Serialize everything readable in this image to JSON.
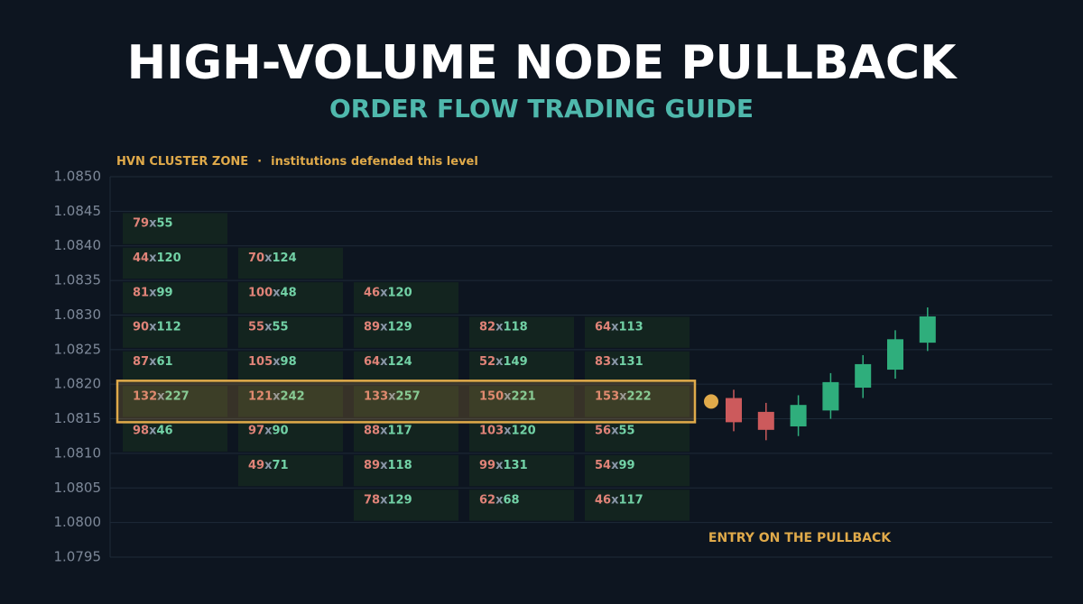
{
  "chart_data": {
    "type": "footprint",
    "title": "HIGH-VOLUME NODE PULLBACK",
    "subtitle": "ORDER FLOW TRADING GUIDE",
    "ylim": [
      1.0795,
      1.085
    ],
    "yticks": [
      {
        "value": 1.085,
        "label": "1.0850"
      },
      {
        "value": 1.0845,
        "label": "1.0845"
      },
      {
        "value": 1.084,
        "label": "1.0840"
      },
      {
        "value": 1.0835,
        "label": "1.0835"
      },
      {
        "value": 1.083,
        "label": "1.0830"
      },
      {
        "value": 1.0825,
        "label": "1.0825"
      },
      {
        "value": 1.082,
        "label": "1.0820"
      },
      {
        "value": 1.0815,
        "label": "1.0815"
      },
      {
        "value": 1.081,
        "label": "1.0810"
      },
      {
        "value": 1.0805,
        "label": "1.0805"
      },
      {
        "value": 1.08,
        "label": "1.0800"
      },
      {
        "value": 1.0795,
        "label": "1.0795"
      }
    ],
    "grid": true,
    "cell_separator": "x",
    "columns": [
      {
        "cells": [
          {
            "price": 1.0845,
            "bid": 79,
            "ask": 55
          },
          {
            "price": 1.084,
            "bid": 44,
            "ask": 120
          },
          {
            "price": 1.0835,
            "bid": 81,
            "ask": 99
          },
          {
            "price": 1.083,
            "bid": 90,
            "ask": 112
          },
          {
            "price": 1.0825,
            "bid": 87,
            "ask": 61
          },
          {
            "price": 1.082,
            "bid": 132,
            "ask": 227
          },
          {
            "price": 1.0815,
            "bid": 98,
            "ask": 46
          }
        ]
      },
      {
        "cells": [
          {
            "price": 1.084,
            "bid": 70,
            "ask": 124
          },
          {
            "price": 1.0835,
            "bid": 100,
            "ask": 48
          },
          {
            "price": 1.083,
            "bid": 55,
            "ask": 55
          },
          {
            "price": 1.0825,
            "bid": 105,
            "ask": 98
          },
          {
            "price": 1.082,
            "bid": 121,
            "ask": 242
          },
          {
            "price": 1.0815,
            "bid": 97,
            "ask": 90
          },
          {
            "price": 1.081,
            "bid": 49,
            "ask": 71
          }
        ]
      },
      {
        "cells": [
          {
            "price": 1.0835,
            "bid": 46,
            "ask": 120
          },
          {
            "price": 1.083,
            "bid": 89,
            "ask": 129
          },
          {
            "price": 1.0825,
            "bid": 64,
            "ask": 124
          },
          {
            "price": 1.082,
            "bid": 133,
            "ask": 257
          },
          {
            "price": 1.0815,
            "bid": 88,
            "ask": 117
          },
          {
            "price": 1.081,
            "bid": 89,
            "ask": 118
          },
          {
            "price": 1.0805,
            "bid": 78,
            "ask": 129
          }
        ]
      },
      {
        "cells": [
          {
            "price": 1.083,
            "bid": 82,
            "ask": 118
          },
          {
            "price": 1.0825,
            "bid": 52,
            "ask": 149
          },
          {
            "price": 1.082,
            "bid": 150,
            "ask": 221
          },
          {
            "price": 1.0815,
            "bid": 103,
            "ask": 120
          },
          {
            "price": 1.081,
            "bid": 99,
            "ask": 131
          },
          {
            "price": 1.0805,
            "bid": 62,
            "ask": 68
          }
        ]
      },
      {
        "cells": [
          {
            "price": 1.083,
            "bid": 64,
            "ask": 113
          },
          {
            "price": 1.0825,
            "bid": 83,
            "ask": 131
          },
          {
            "price": 1.082,
            "bid": 153,
            "ask": 222
          },
          {
            "price": 1.0815,
            "bid": 56,
            "ask": 55
          },
          {
            "price": 1.081,
            "bid": 54,
            "ask": 99
          },
          {
            "price": 1.0805,
            "bid": 46,
            "ask": 117
          }
        ]
      }
    ],
    "zone": {
      "label": "HVN CLUSTER ZONE",
      "separator": "·",
      "note": "institutions defended this level",
      "top": 1.08205,
      "bottom": 1.08145,
      "color": "#e0aa4a"
    },
    "candles": [
      {
        "open": 1.0818,
        "high": 1.08192,
        "low": 1.08132,
        "close": 1.08145
      },
      {
        "open": 1.0816,
        "high": 1.08173,
        "low": 1.08119,
        "close": 1.08134
      },
      {
        "open": 1.08139,
        "high": 1.08184,
        "low": 1.08125,
        "close": 1.0817
      },
      {
        "open": 1.08162,
        "high": 1.08216,
        "low": 1.0815,
        "close": 1.08203
      },
      {
        "open": 1.08195,
        "high": 1.08242,
        "low": 1.0818,
        "close": 1.08229
      },
      {
        "open": 1.08221,
        "high": 1.08278,
        "low": 1.08208,
        "close": 1.08265
      },
      {
        "open": 1.0826,
        "high": 1.08311,
        "low": 1.08248,
        "close": 1.08298
      }
    ],
    "up_color": "#2fae7c",
    "down_color": "#cc5a5c",
    "bid_color": "#e08378",
    "ask_color": "#72d2a6",
    "entry": {
      "label": "ENTRY ON THE PULLBACK",
      "price": 1.08175
    }
  }
}
